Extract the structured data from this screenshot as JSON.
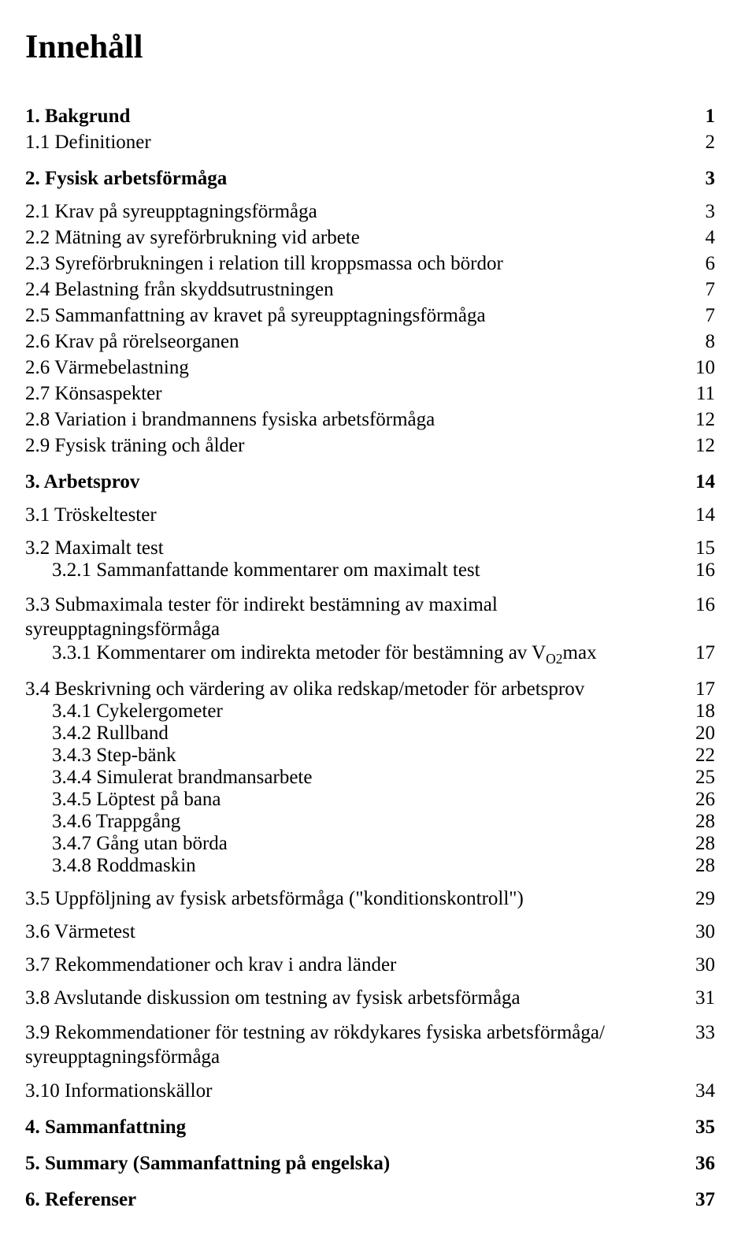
{
  "title": "Innehåll",
  "text_color": "#000000",
  "background_color": "#ffffff",
  "font_family": "Times New Roman",
  "entries": [
    {
      "level": 1,
      "label": "1. Bakgrund",
      "page": "1"
    },
    {
      "level": 2,
      "label": "1.1 Definitioner",
      "page": "2"
    },
    {
      "level": 1,
      "label": "2. Fysisk arbetsförmåga",
      "page": "3"
    },
    {
      "level": 2,
      "label": "2.1 Krav på syreupptagningsförmåga",
      "page": "3",
      "group_gap": true
    },
    {
      "level": 2,
      "label": "2.2 Mätning av syreförbrukning vid arbete",
      "page": "4"
    },
    {
      "level": 2,
      "label": "2.3 Syreförbrukningen i relation till kroppsmassa och bördor",
      "page": "6"
    },
    {
      "level": 2,
      "label": "2.4 Belastning från skyddsutrustningen",
      "page": "7"
    },
    {
      "level": 2,
      "label": "2.5 Sammanfattning av kravet på syreupptagningsförmåga",
      "page": "7"
    },
    {
      "level": 2,
      "label": "2.6 Krav på rörelseorganen",
      "page": "8"
    },
    {
      "level": 2,
      "label": "2.6 Värmebelastning",
      "page": "10"
    },
    {
      "level": 2,
      "label": "2.7 Könsaspekter",
      "page": "11"
    },
    {
      "level": 2,
      "label": "2.8 Variation i brandmannens fysiska arbetsförmåga",
      "page": "12"
    },
    {
      "level": 2,
      "label": "2.9 Fysisk träning och ålder",
      "page": "12"
    },
    {
      "level": 1,
      "label": "3. Arbetsprov",
      "page": "14"
    },
    {
      "level": 2,
      "label": "3.1 Tröskeltester",
      "page": "14",
      "group_gap": true
    },
    {
      "level": 2,
      "label": "3.2 Maximalt test",
      "page": "15",
      "group_gap": true
    },
    {
      "level": 3,
      "label": "3.2.1 Sammanfattande kommentarer om maximalt test",
      "page": "16"
    },
    {
      "level": 2,
      "label_html": "3.3 Submaximala tester för indirekt bestämning av maximal syreupptagningsförmåga",
      "page": "16",
      "group_gap": true,
      "multiline": true
    },
    {
      "level": 3,
      "label_html": "3.3.1 Kommentarer om indirekta metoder för bestämning av V<sub>O2</sub>max",
      "page": "17"
    },
    {
      "level": 2,
      "label": "3.4 Beskrivning och värdering av olika redskap/metoder för arbetsprov",
      "page": "17",
      "group_gap": true
    },
    {
      "level": 3,
      "label": "3.4.1 Cykelergometer",
      "page": "18"
    },
    {
      "level": 3,
      "label": "3.4.2 Rullband",
      "page": "20"
    },
    {
      "level": 3,
      "label": "3.4.3 Step-bänk",
      "page": "22"
    },
    {
      "level": 3,
      "label": "3.4.4 Simulerat brandmansarbete",
      "page": "25"
    },
    {
      "level": 3,
      "label": "3.4.5 Löptest på bana",
      "page": "26"
    },
    {
      "level": 3,
      "label": "3.4.6 Trappgång",
      "page": "28"
    },
    {
      "level": 3,
      "label": "3.4.7 Gång utan börda",
      "page": "28"
    },
    {
      "level": 3,
      "label": "3.4.8 Roddmaskin",
      "page": "28"
    },
    {
      "level": 2,
      "label": "3.5 Uppföljning av fysisk arbetsförmåga (\"konditionskontroll\")",
      "page": "29",
      "group_gap": true
    },
    {
      "level": 2,
      "label": "3.6 Värmetest",
      "page": "30",
      "group_gap": true
    },
    {
      "level": 2,
      "label": "3.7 Rekommendationer och krav i andra länder",
      "page": "30",
      "group_gap": true
    },
    {
      "level": 2,
      "label": "3.8 Avslutande diskussion om testning av fysisk arbetsförmåga",
      "page": "31",
      "group_gap": true
    },
    {
      "level": 2,
      "label_html": "3.9 Rekommendationer för testning av rökdykares fysiska arbetsförmåga/ syreupptagningsförmåga",
      "page": "33",
      "group_gap": true,
      "multiline": true
    },
    {
      "level": 2,
      "label": "3.10 Informationskällor",
      "page": "34",
      "group_gap": true
    },
    {
      "level": 1,
      "label": "4. Sammanfattning",
      "page": "35"
    },
    {
      "level": 1,
      "label": "5. Summary (Sammanfattning på engelska)",
      "page": "36"
    },
    {
      "level": 1,
      "label": "6. Referenser",
      "page": "37"
    }
  ]
}
